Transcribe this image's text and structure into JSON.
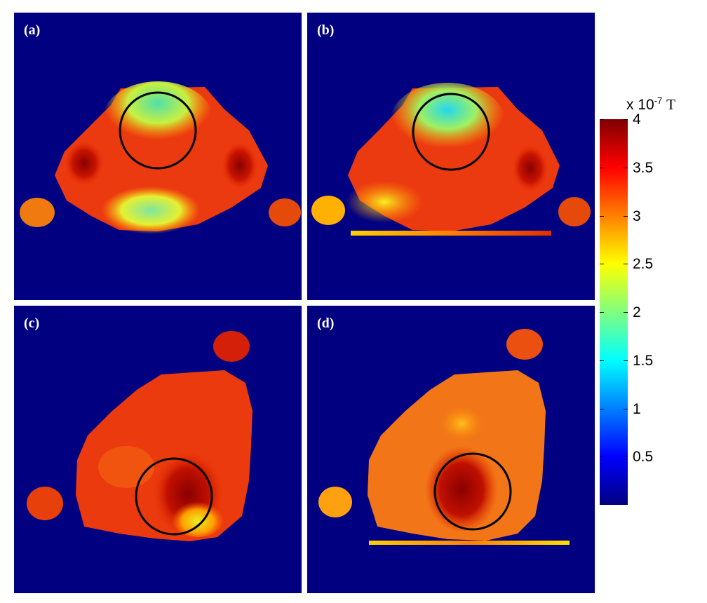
{
  "chart_data": {
    "type": "heatmap",
    "description_free": true,
    "panels": [
      {
        "label": "(a)"
      },
      {
        "label": "(b)"
      },
      {
        "label": "(c)"
      },
      {
        "label": "(d)"
      }
    ],
    "colorbar": {
      "colormap": "jet",
      "range": [
        0,
        4
      ],
      "ticks": [
        0.5,
        1,
        1.5,
        2,
        2.5,
        3,
        3.5,
        4
      ],
      "tick_labels": [
        "0.5",
        "1",
        "1.5",
        "2",
        "2.5",
        "3",
        "3.5",
        "4"
      ],
      "scale_prefix": "x 10",
      "scale_exponent": "-7",
      "unit": "T"
    }
  },
  "colors": {
    "background_field": "#000080",
    "circle": "#000000"
  }
}
